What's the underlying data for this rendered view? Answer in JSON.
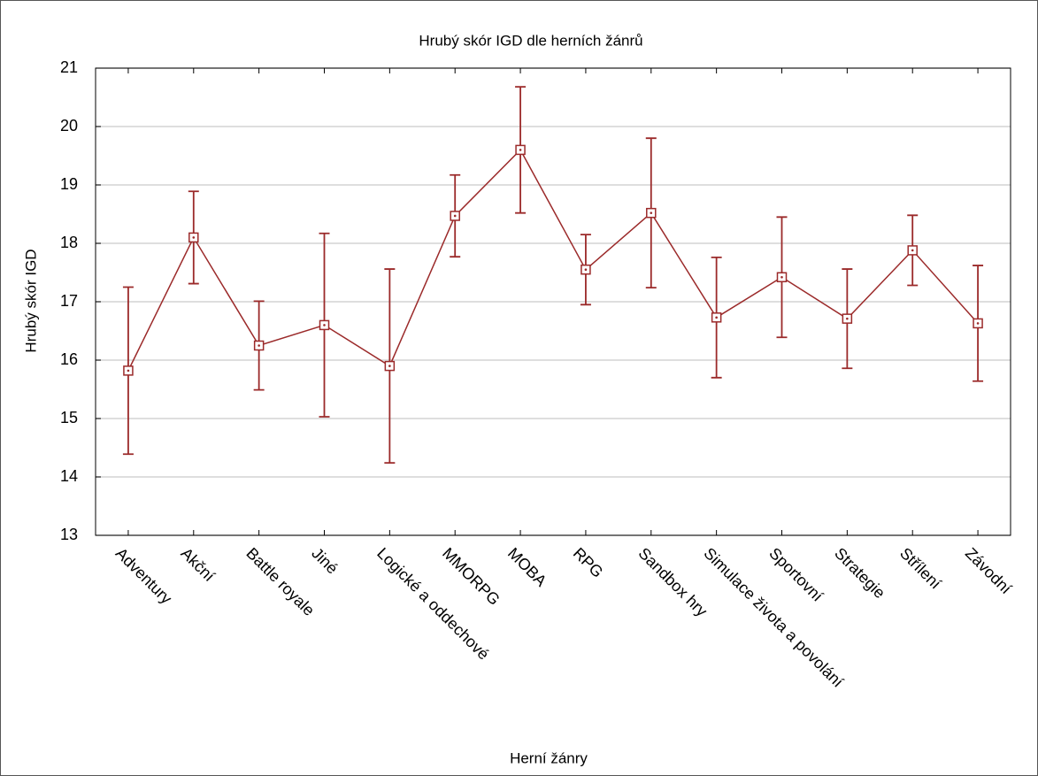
{
  "chart_data": {
    "type": "errorbar-line",
    "title": "Hrubý skór IGD dle herních žánrů",
    "x_label": "Herní žánry",
    "y_label": "Hrubý skór IGD",
    "categories": [
      "Adventury",
      "Akční",
      "Battle royale",
      "Jiné",
      "Logické a oddechové",
      "MMORPG",
      "MOBA",
      "RPG",
      "Sandbox hry",
      "Simulace života a povolání",
      "Sportovní",
      "Strategie",
      "Střílení",
      "Závodní"
    ],
    "values": [
      15.82,
      18.1,
      16.25,
      16.6,
      15.9,
      18.47,
      19.6,
      17.55,
      18.52,
      16.73,
      17.42,
      16.71,
      17.88,
      16.63
    ],
    "errors": [
      1.43,
      0.79,
      0.76,
      1.57,
      1.66,
      0.7,
      1.08,
      0.6,
      1.28,
      1.03,
      1.03,
      0.85,
      0.6,
      0.99
    ],
    "color": "#9b2a2a",
    "ylim": [
      13,
      21
    ],
    "yticks": [
      13,
      14,
      15,
      16,
      17,
      18,
      19,
      20,
      21
    ],
    "grid": true
  }
}
